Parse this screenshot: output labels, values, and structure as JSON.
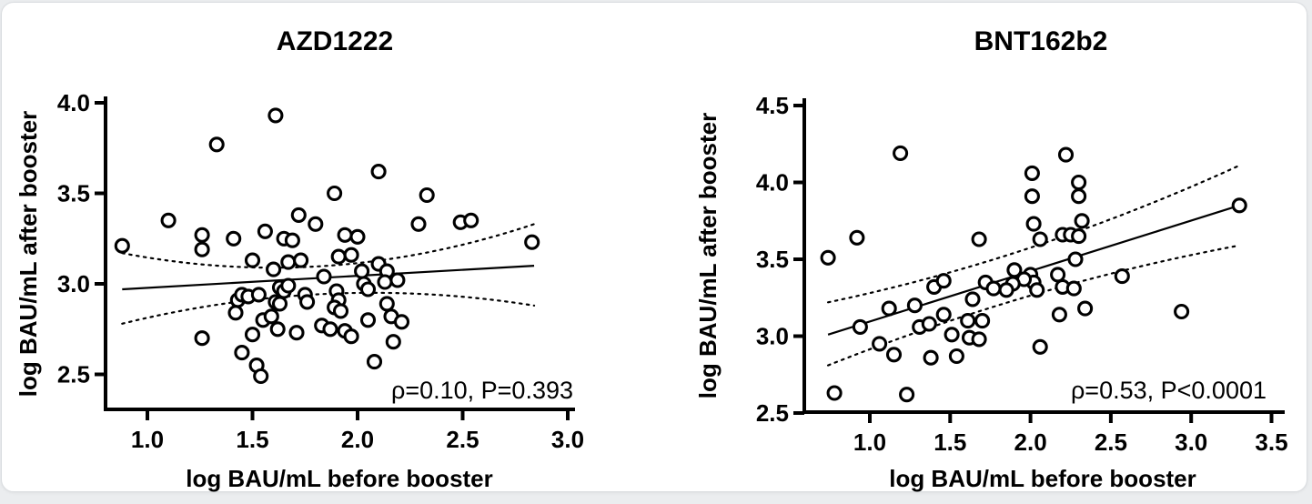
{
  "figure_type": "scatter-correlation-figure",
  "colors": {
    "ink": "#000000",
    "annotation": "#1a1a1a",
    "marker_fill": "#ffffff",
    "card_background": "#ffffff",
    "card_border": "#dadde0",
    "page_background": "#ebedef"
  },
  "chart_data": [
    {
      "type": "scatter",
      "title": "AZD1222",
      "xlabel": "log BAU/mL before booster",
      "ylabel": "log BAU/mL after booster",
      "annotation": "ρ=0.10, P=0.393",
      "stats": {
        "rho": "0.10",
        "p_value": "0.393"
      },
      "xticks": [
        1.0,
        1.5,
        2.0,
        2.5,
        3.0
      ],
      "yticks": [
        2.5,
        3.0,
        3.5,
        4.0
      ],
      "xtick_labels": [
        "1.0",
        "1.5",
        "2.0",
        "2.5",
        "3.0"
      ],
      "ytick_labels": [
        "2.5",
        "3.0",
        "3.5",
        "4.0"
      ],
      "xlim": [
        0.8,
        3.03
      ],
      "ylim": [
        2.31,
        4.03
      ],
      "grid": false,
      "legend": "none",
      "points": [
        [
          0.88,
          3.21
        ],
        [
          1.1,
          3.35
        ],
        [
          1.26,
          3.27
        ],
        [
          1.26,
          3.19
        ],
        [
          1.33,
          3.77
        ],
        [
          1.41,
          3.25
        ],
        [
          1.56,
          3.29
        ],
        [
          1.61,
          3.93
        ],
        [
          1.65,
          3.25
        ],
        [
          1.69,
          3.24
        ],
        [
          1.72,
          3.38
        ],
        [
          1.8,
          3.33
        ],
        [
          1.89,
          3.5
        ],
        [
          1.94,
          3.27
        ],
        [
          2.0,
          3.26
        ],
        [
          2.1,
          3.62
        ],
        [
          2.29,
          3.33
        ],
        [
          2.33,
          3.49
        ],
        [
          2.49,
          3.34
        ],
        [
          2.54,
          3.35
        ],
        [
          2.83,
          3.23
        ],
        [
          1.5,
          3.13
        ],
        [
          1.6,
          3.08
        ],
        [
          1.67,
          3.12
        ],
        [
          1.73,
          3.13
        ],
        [
          1.84,
          3.04
        ],
        [
          1.91,
          3.15
        ],
        [
          1.97,
          3.16
        ],
        [
          2.02,
          3.07
        ],
        [
          2.1,
          3.11
        ],
        [
          2.14,
          3.07
        ],
        [
          2.19,
          3.02
        ],
        [
          1.43,
          2.91
        ],
        [
          1.45,
          2.94
        ],
        [
          1.48,
          2.93
        ],
        [
          1.53,
          2.94
        ],
        [
          1.63,
          2.98
        ],
        [
          1.65,
          2.96
        ],
        [
          1.67,
          2.99
        ],
        [
          1.61,
          2.9
        ],
        [
          1.63,
          2.89
        ],
        [
          1.75,
          2.94
        ],
        [
          1.76,
          2.9
        ],
        [
          1.9,
          2.96
        ],
        [
          1.91,
          2.91
        ],
        [
          1.89,
          2.87
        ],
        [
          1.92,
          2.85
        ],
        [
          2.03,
          3.0
        ],
        [
          2.05,
          2.97
        ],
        [
          2.13,
          3.01
        ],
        [
          2.14,
          2.89
        ],
        [
          1.42,
          2.84
        ],
        [
          1.55,
          2.8
        ],
        [
          1.59,
          2.82
        ],
        [
          1.62,
          2.75
        ],
        [
          1.71,
          2.73
        ],
        [
          1.83,
          2.77
        ],
        [
          1.87,
          2.75
        ],
        [
          1.94,
          2.74
        ],
        [
          1.97,
          2.71
        ],
        [
          2.05,
          2.8
        ],
        [
          2.16,
          2.82
        ],
        [
          2.21,
          2.79
        ],
        [
          2.17,
          2.68
        ],
        [
          1.26,
          2.7
        ],
        [
          1.5,
          2.72
        ],
        [
          1.45,
          2.62
        ],
        [
          1.52,
          2.55
        ],
        [
          1.54,
          2.49
        ],
        [
          2.08,
          2.57
        ]
      ],
      "regression": {
        "solid_line": [
          [
            0.88,
            2.97
          ],
          [
            2.84,
            3.1
          ]
        ],
        "ci_upper": [
          [
            0.88,
            3.17
          ],
          [
            1.86,
            2.95
          ],
          [
            2.84,
            3.33
          ]
        ],
        "ci_lower": [
          [
            0.88,
            2.78
          ],
          [
            1.86,
            3.06
          ],
          [
            2.84,
            2.88
          ]
        ]
      }
    },
    {
      "type": "scatter",
      "title": "BNT162b2",
      "xlabel": "log BAU/mL before booster",
      "ylabel": "log BAU/mL after booster",
      "annotation": "ρ=0.53, P<0.0001",
      "stats": {
        "rho": "0.53",
        "p_value": "<0.0001"
      },
      "xticks": [
        1.0,
        1.5,
        2.0,
        2.5,
        3.0,
        3.5
      ],
      "yticks": [
        2.5,
        3.0,
        3.5,
        4.0,
        4.5
      ],
      "xtick_labels": [
        "1.0",
        "1.5",
        "2.0",
        "2.5",
        "3.0",
        "3.5"
      ],
      "ytick_labels": [
        "2.5",
        "3.0",
        "3.5",
        "4.0",
        "4.5"
      ],
      "xlim": [
        0.59,
        3.55
      ],
      "ylim": [
        2.5,
        4.54
      ],
      "grid": false,
      "legend": "none",
      "points": [
        [
          0.74,
          3.51
        ],
        [
          0.92,
          3.64
        ],
        [
          0.78,
          2.63
        ],
        [
          1.23,
          2.62
        ],
        [
          1.19,
          4.19
        ],
        [
          2.22,
          4.18
        ],
        [
          2.01,
          4.06
        ],
        [
          2.01,
          3.91
        ],
        [
          2.3,
          4.0
        ],
        [
          2.3,
          3.91
        ],
        [
          2.02,
          3.73
        ],
        [
          2.32,
          3.75
        ],
        [
          2.06,
          3.63
        ],
        [
          2.2,
          3.66
        ],
        [
          2.25,
          3.66
        ],
        [
          2.3,
          3.65
        ],
        [
          1.68,
          3.63
        ],
        [
          2.28,
          3.5
        ],
        [
          3.3,
          3.85
        ],
        [
          1.9,
          3.43
        ],
        [
          2.0,
          3.4
        ],
        [
          2.02,
          3.35
        ],
        [
          1.96,
          3.37
        ],
        [
          1.89,
          3.34
        ],
        [
          1.85,
          3.3
        ],
        [
          2.04,
          3.3
        ],
        [
          2.17,
          3.4
        ],
        [
          2.2,
          3.32
        ],
        [
          2.27,
          3.31
        ],
        [
          1.72,
          3.35
        ],
        [
          1.77,
          3.31
        ],
        [
          1.4,
          3.32
        ],
        [
          1.46,
          3.36
        ],
        [
          2.57,
          3.39
        ],
        [
          1.64,
          3.24
        ],
        [
          1.12,
          3.18
        ],
        [
          1.28,
          3.2
        ],
        [
          1.46,
          3.14
        ],
        [
          0.94,
          3.06
        ],
        [
          1.31,
          3.06
        ],
        [
          1.37,
          3.08
        ],
        [
          1.51,
          3.01
        ],
        [
          1.61,
          3.1
        ],
        [
          1.7,
          3.1
        ],
        [
          1.62,
          2.99
        ],
        [
          1.68,
          2.98
        ],
        [
          2.18,
          3.14
        ],
        [
          2.34,
          3.18
        ],
        [
          2.94,
          3.16
        ],
        [
          2.06,
          2.93
        ],
        [
          1.06,
          2.95
        ],
        [
          1.15,
          2.88
        ],
        [
          1.38,
          2.86
        ],
        [
          1.54,
          2.87
        ]
      ],
      "regression": {
        "solid_line": [
          [
            0.74,
            3.01
          ],
          [
            3.3,
            3.85
          ]
        ],
        "ci_upper": [
          [
            0.74,
            3.22
          ],
          [
            2.02,
            3.5
          ],
          [
            3.3,
            4.11
          ]
        ],
        "ci_lower": [
          [
            0.74,
            2.81
          ],
          [
            2.02,
            3.34
          ],
          [
            3.3,
            3.59
          ]
        ]
      }
    }
  ]
}
